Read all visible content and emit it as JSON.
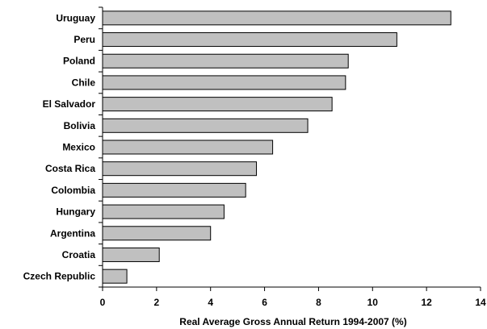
{
  "chart_data": {
    "type": "bar",
    "orientation": "horizontal",
    "categories": [
      "Uruguay",
      "Peru",
      "Poland",
      "Chile",
      "El Salvador",
      "Bolivia",
      "Mexico",
      "Costa Rica",
      "Colombia",
      "Hungary",
      "Argentina",
      "Croatia",
      "Czech Republic"
    ],
    "values": [
      12.9,
      10.9,
      9.1,
      9.0,
      8.5,
      7.6,
      6.3,
      5.7,
      5.3,
      4.5,
      4.0,
      2.1,
      0.9
    ],
    "title": "",
    "xlabel": "Real Average Gross Annual Return 1994-2007 (%)",
    "ylabel": "",
    "xlim": [
      0,
      14
    ],
    "xticks": [
      0,
      2,
      4,
      6,
      8,
      10,
      12,
      14
    ],
    "grid": false,
    "legend": "none",
    "colors": {
      "bar_fill": "#c0c0c0",
      "bar_stroke": "#000000"
    }
  }
}
